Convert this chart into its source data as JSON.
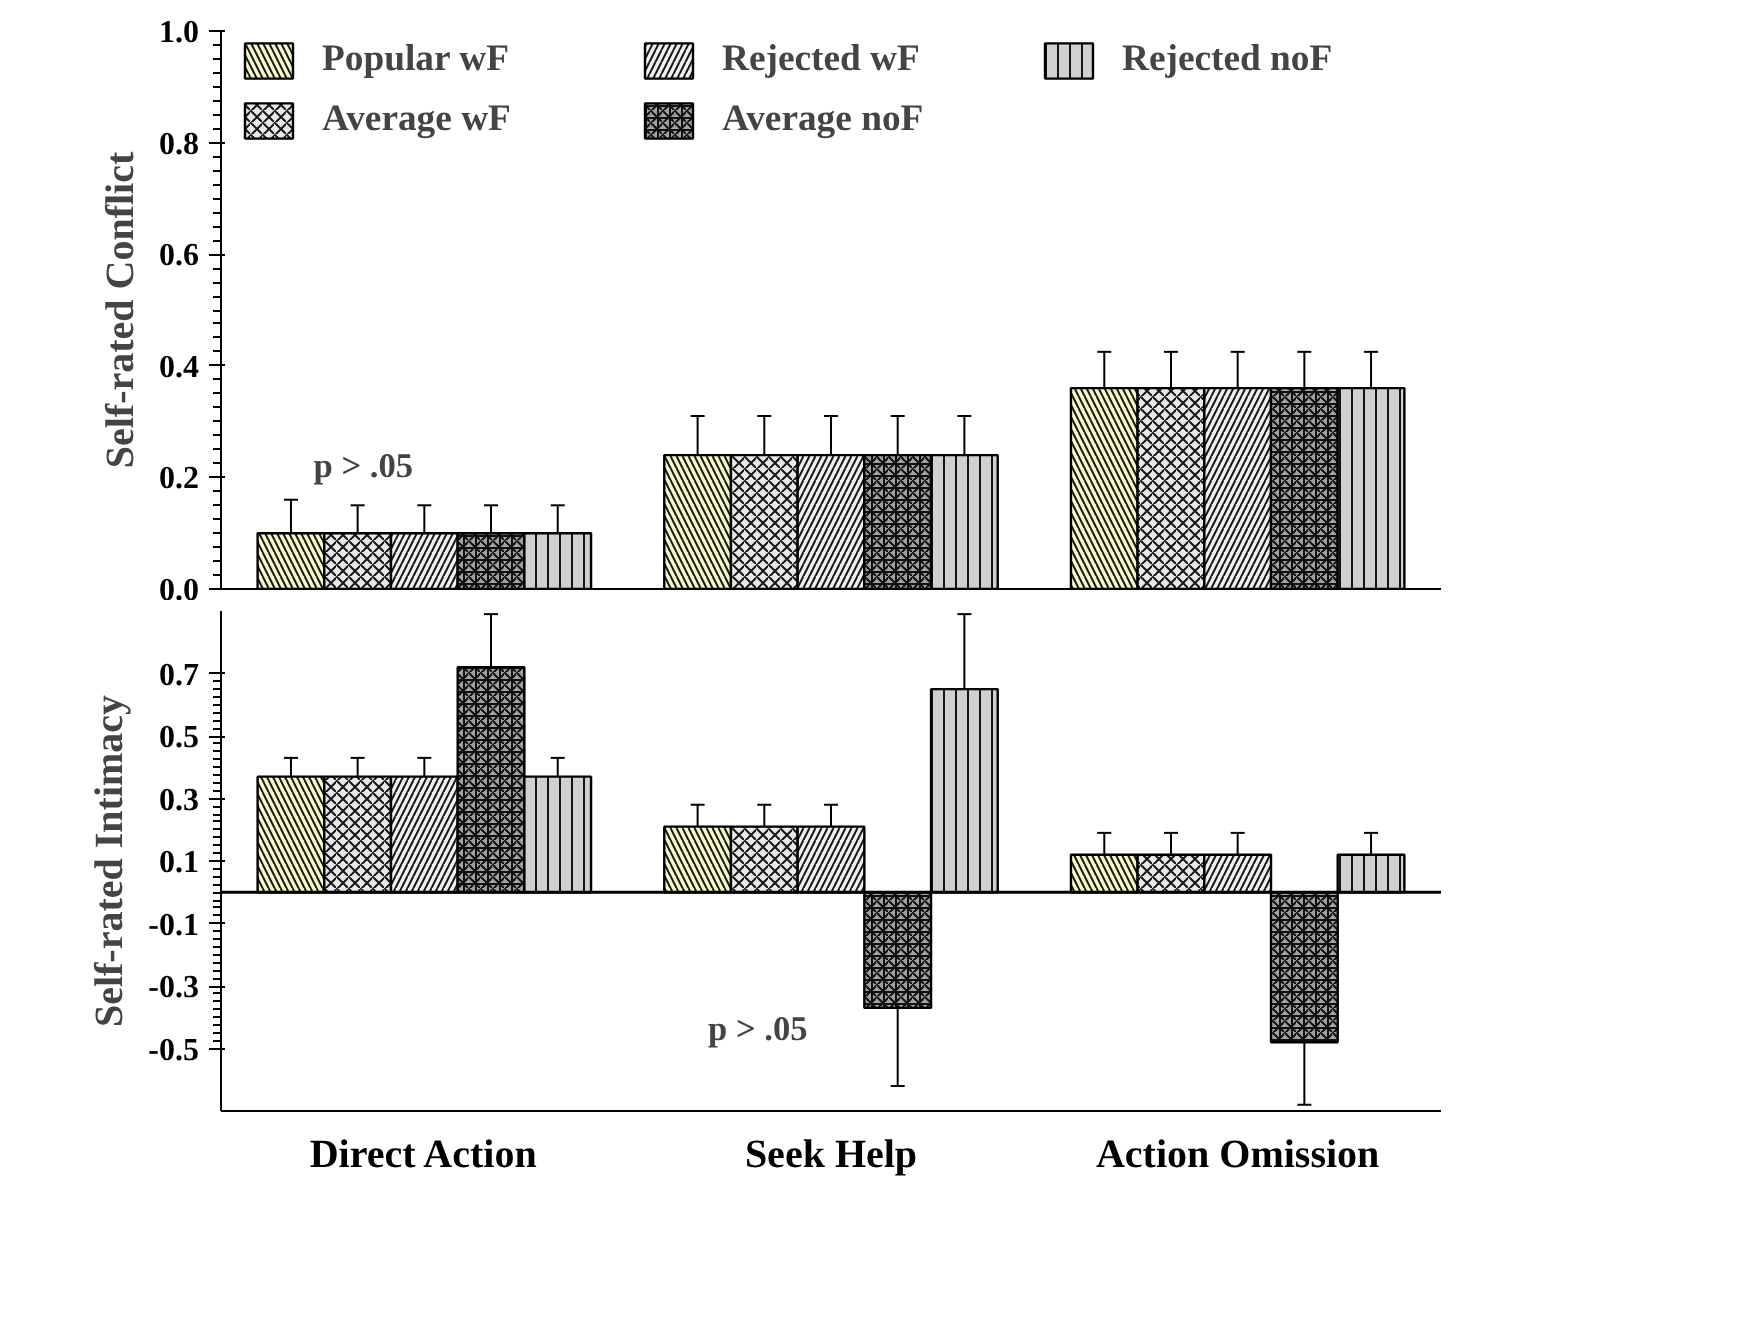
{
  "chart_data": [
    {
      "type": "bar",
      "ylabel": "Self-rated Conflict",
      "categories": [
        null,
        null,
        null
      ],
      "ylim": [
        0,
        1.0
      ],
      "yticks": [
        {
          "value": 0,
          "label": "0.0"
        },
        0.2,
        0.4,
        0.6,
        0.8,
        {
          "value": 1,
          "label": "1.0"
        }
      ],
      "legend": "top",
      "grid": false,
      "series": [
        {
          "name": "Popular wF",
          "color": "#f7f7cc",
          "values": [
            0.1,
            0.24,
            0.36
          ],
          "errors": [
            0.06,
            0.07,
            0.065
          ]
        },
        {
          "name": "Average wF",
          "color": "#e8e8e8",
          "values": [
            0.1,
            0.24,
            0.36
          ],
          "errors": [
            0.05,
            0.07,
            0.065
          ]
        },
        {
          "name": "Rejected wF",
          "color": "#f0f0f0",
          "values": [
            0.1,
            0.24,
            0.36
          ],
          "errors": [
            0.05,
            0.07,
            0.065
          ]
        },
        {
          "name": "Average noF",
          "color": "#a0a0a0",
          "values": [
            0.1,
            0.24,
            0.36
          ],
          "errors": [
            0.05,
            0.07,
            0.065
          ]
        },
        {
          "name": "Rejected noF",
          "color": "#d0d0d0",
          "values": [
            0.1,
            0.24,
            0.36
          ],
          "errors": [
            0.05,
            0.07,
            0.065
          ]
        }
      ],
      "annotations": [
        "p > .05"
      ]
    },
    {
      "type": "bar",
      "ylabel": "Self-rated Intimacy",
      "categories": [
        "Direct Action",
        "Seek Help",
        "Action Omission"
      ],
      "ylim": [
        -0.7,
        0.9
      ],
      "yticks": [
        -0.5,
        -0.3,
        -0.1,
        0.1,
        0.3,
        0.5,
        0.7
      ],
      "legend": false,
      "grid": false,
      "ref_lines": [
        {
          "axis": "y",
          "value": 0
        }
      ],
      "series": [
        {
          "color": "#f7f7cc",
          "values": [
            0.37,
            0.21,
            0.12
          ],
          "errors": [
            0.06,
            0.07,
            0.07
          ]
        },
        {
          "color": "#e8e8e8",
          "values": [
            0.37,
            0.21,
            0.12
          ],
          "errors": [
            0.06,
            0.07,
            0.07
          ]
        },
        {
          "color": "#f0f0f0",
          "values": [
            0.37,
            0.21,
            0.12
          ],
          "errors": [
            0.06,
            0.07,
            0.07
          ]
        },
        {
          "color": "#a0a0a0",
          "values": [
            0.72,
            -0.37,
            -0.48
          ],
          "errors": [
            0.17,
            0.25,
            0.2
          ]
        },
        {
          "color": "#d0d0d0",
          "values": [
            0.37,
            0.65,
            0.12
          ],
          "errors": [
            0.06,
            0.24,
            0.07
          ]
        }
      ],
      "annotations": [
        "p > .05"
      ]
    }
  ]
}
